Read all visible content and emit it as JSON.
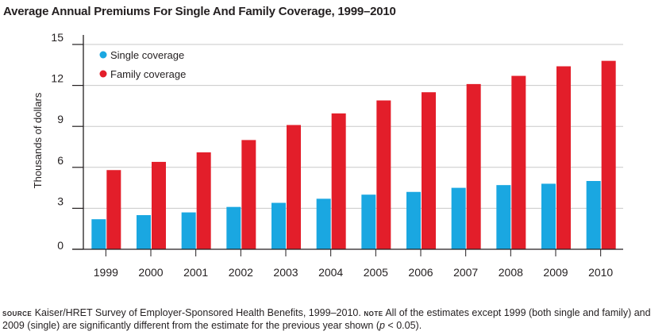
{
  "colors": {
    "single": "#1aa7e1",
    "family": "#e31e2a",
    "axis": "#231f20",
    "grid": "#c8c8c8"
  },
  "chart_data": {
    "type": "bar",
    "title": "Average Annual Premiums For Single And Family Coverage, 1999–2010",
    "xlabel": "",
    "ylabel": "Thousands of dollars",
    "ylim": [
      0,
      15
    ],
    "yticks": [
      "0",
      "3",
      "6",
      "9",
      "12",
      "15"
    ],
    "ytick_values": [
      0,
      3,
      6,
      9,
      12,
      15
    ],
    "categories": [
      "1999",
      "2000",
      "2001",
      "2002",
      "2003",
      "2004",
      "2005",
      "2006",
      "2007",
      "2008",
      "2009",
      "2010"
    ],
    "series": [
      {
        "name": "Single coverage",
        "values": [
          2.2,
          2.5,
          2.7,
          3.1,
          3.4,
          3.7,
          4.0,
          4.2,
          4.5,
          4.7,
          4.8,
          5.0
        ]
      },
      {
        "name": "Family coverage",
        "values": [
          5.8,
          6.4,
          7.1,
          8.0,
          9.1,
          9.95,
          10.9,
          11.5,
          12.1,
          12.7,
          13.4,
          13.8
        ]
      }
    ],
    "legend_position": "top-left",
    "grid": true
  },
  "footnote": {
    "source_label": "Source",
    "source_text": "Kaiser/HRET Survey of Employer-Sponsored Health Benefits, 1999–2010.",
    "note_label": "Note",
    "note_text_1": "All of the estimates except 1999 (both single and family) and 2009 (single) are significantly different from the estimate for the previous year shown (",
    "note_italic": "p",
    "note_text_2": " < 0.05)."
  }
}
